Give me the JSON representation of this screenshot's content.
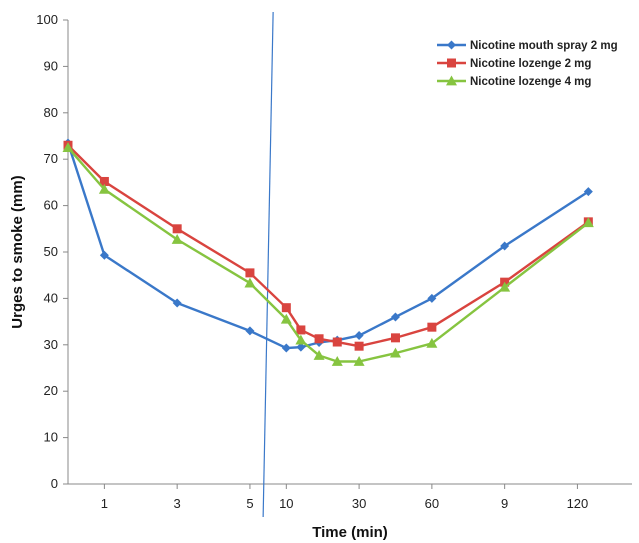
{
  "chart_data": {
    "type": "line",
    "title": "",
    "xlabel": "Time (min)",
    "ylabel": "Urges to smoke (mm)",
    "ylim": [
      0,
      100
    ],
    "yticks": [
      "0",
      "10",
      "20",
      "30",
      "40",
      "50",
      "60",
      "70",
      "80",
      "90",
      "100"
    ],
    "grid": false,
    "legend": "top-right",
    "x_tick_labels": [
      "1",
      "3",
      "5",
      "10",
      "30",
      "60",
      "9",
      "120"
    ],
    "x_tick_positions": [
      1,
      3,
      5,
      6,
      8,
      10,
      12,
      14
    ],
    "axis_break_at": 5.5,
    "x": [
      0,
      1,
      3,
      5,
      6,
      6.4,
      6.9,
      7.4,
      8,
      9,
      10,
      12,
      14.3
    ],
    "xlim": [
      0,
      15.5
    ],
    "series": [
      {
        "name": "Nicotine mouth spray 2 mg",
        "color": "#3a78c9",
        "marker": "diamond",
        "values": [
          73.5,
          49.3,
          39.0,
          33.0,
          29.3,
          29.5,
          30.5,
          31.0,
          32.0,
          36.0,
          40.0,
          51.3,
          63.0
        ]
      },
      {
        "name": "Nicotine lozenge 2 mg",
        "color": "#d9443f",
        "marker": "square",
        "values": [
          73.0,
          65.2,
          55.0,
          45.5,
          38.0,
          33.2,
          31.3,
          30.6,
          29.7,
          31.5,
          33.8,
          43.5,
          56.5
        ]
      },
      {
        "name": "Nicotine lozenge 4 mg",
        "color": "#86c440",
        "marker": "triangle",
        "values": [
          72.5,
          63.5,
          52.7,
          43.3,
          35.5,
          31.0,
          27.7,
          26.4,
          26.4,
          28.2,
          30.3,
          42.4,
          56.3
        ]
      }
    ]
  }
}
